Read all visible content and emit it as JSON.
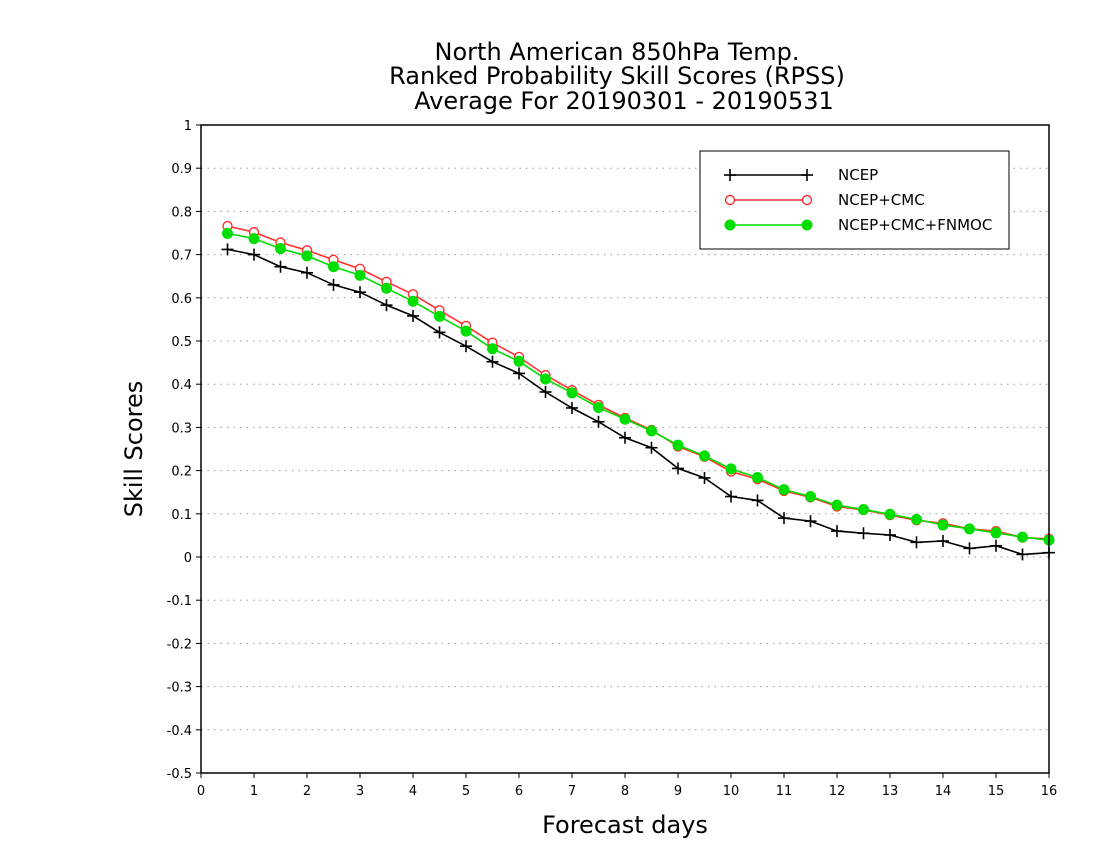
{
  "chart_data": {
    "type": "line",
    "title_lines": [
      "North American 850hPa Temp.",
      "Ranked Probability Skill Scores (RPSS)",
      "Average For 20190301 - 20190531"
    ],
    "xlabel": "Forecast days",
    "ylabel": "Skill Scores",
    "xlim": [
      0,
      16
    ],
    "ylim": [
      -0.5,
      1
    ],
    "x_ticks": [
      "0",
      "1",
      "2",
      "3",
      "4",
      "5",
      "6",
      "7",
      "8",
      "9",
      "10",
      "11",
      "12",
      "13",
      "14",
      "15",
      "16"
    ],
    "y_ticks": [
      "1",
      "0.9",
      "0.8",
      "0.7",
      "0.6",
      "0.5",
      "0.4",
      "0.3",
      "0.2",
      "0.1",
      "0",
      "-0.1",
      "-0.2",
      "-0.3",
      "-0.4",
      "-0.5"
    ],
    "grid": "horizontal dotted",
    "legend_position": "top-right",
    "x": [
      0.5,
      1,
      1.5,
      2,
      2.5,
      3,
      3.5,
      4,
      4.5,
      5,
      5.5,
      6,
      6.5,
      7,
      7.5,
      8,
      8.5,
      9,
      9.5,
      10,
      10.5,
      11,
      11.5,
      12,
      12.5,
      13,
      13.5,
      14,
      14.5,
      15,
      15.5,
      16
    ],
    "series": [
      {
        "name": "NCEP",
        "color": "#000000",
        "marker": "plus",
        "values": [
          0.712,
          0.7,
          0.672,
          0.658,
          0.63,
          0.613,
          0.583,
          0.558,
          0.52,
          0.488,
          0.452,
          0.425,
          0.382,
          0.345,
          0.313,
          0.276,
          0.253,
          0.205,
          0.183,
          0.14,
          0.131,
          0.09,
          0.083,
          0.06,
          0.055,
          0.051,
          0.034,
          0.037,
          0.02,
          0.026,
          0.006,
          0.01
        ]
      },
      {
        "name": "NCEP+CMC",
        "color": "#ff3030",
        "marker": "open-circle",
        "values": [
          0.766,
          0.752,
          0.728,
          0.71,
          0.688,
          0.667,
          0.637,
          0.608,
          0.571,
          0.535,
          0.496,
          0.463,
          0.421,
          0.386,
          0.352,
          0.322,
          0.294,
          0.256,
          0.232,
          0.198,
          0.18,
          0.153,
          0.138,
          0.117,
          0.109,
          0.097,
          0.085,
          0.078,
          0.065,
          0.06,
          0.045,
          0.042
        ]
      },
      {
        "name": "NCEP+CMC+FNMOC",
        "color": "#00dd00",
        "marker": "filled-circle",
        "values": [
          0.749,
          0.737,
          0.714,
          0.697,
          0.672,
          0.652,
          0.622,
          0.592,
          0.557,
          0.523,
          0.482,
          0.453,
          0.412,
          0.38,
          0.346,
          0.319,
          0.292,
          0.259,
          0.234,
          0.204,
          0.184,
          0.156,
          0.14,
          0.12,
          0.11,
          0.099,
          0.087,
          0.074,
          0.065,
          0.056,
          0.046,
          0.039
        ]
      }
    ]
  }
}
